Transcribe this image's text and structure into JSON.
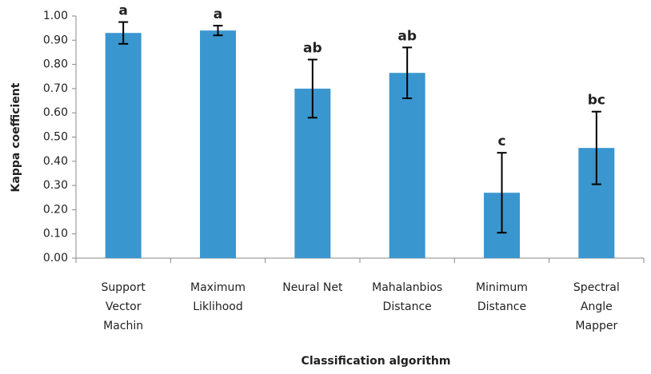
{
  "chart_data": {
    "type": "bar",
    "categories": [
      [
        "Support",
        "Vector",
        "Machin"
      ],
      [
        "Maximum",
        "Liklihood"
      ],
      [
        "Neural Net"
      ],
      [
        "Mahalanbios",
        "Distance"
      ],
      [
        "Minimum",
        "Distance"
      ],
      [
        "Spectral",
        "Angle",
        "Mapper"
      ]
    ],
    "values": [
      0.93,
      0.94,
      0.7,
      0.765,
      0.27,
      0.455
    ],
    "errors": [
      0.045,
      0.02,
      0.12,
      0.105,
      0.165,
      0.15
    ],
    "annotations": [
      "a",
      "a",
      "ab",
      "ab",
      "c",
      "bc"
    ],
    "color": "#3a96cf",
    "ylabel": "Kappa coefficient",
    "xlabel": "Classification  algorithm",
    "ylim": [
      0,
      1
    ],
    "yticks": [
      {
        "value": 0,
        "label": "0.00"
      },
      {
        "value": 0.1,
        "label": "0.10"
      },
      {
        "value": 0.2,
        "label": "0.20"
      },
      {
        "value": 0.3,
        "label": "0.30"
      },
      {
        "value": 0.4,
        "label": "0.40"
      },
      {
        "value": 0.5,
        "label": "0.50"
      },
      {
        "value": 0.6,
        "label": "0.60"
      },
      {
        "value": 0.7,
        "label": "0.70"
      },
      {
        "value": 0.8,
        "label": "0.80"
      },
      {
        "value": 0.9,
        "label": "0.90"
      },
      {
        "value": 1,
        "label": "1.00"
      }
    ],
    "grid": false
  }
}
